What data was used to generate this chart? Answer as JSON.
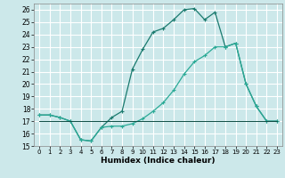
{
  "background_color": "#cce8ea",
  "grid_color": "#ffffff",
  "line1_x": [
    0,
    1,
    2,
    3,
    4,
    5,
    6,
    7,
    8,
    9,
    10,
    11,
    12,
    13,
    14,
    15,
    16,
    17,
    18,
    19,
    20,
    21,
    22,
    23
  ],
  "line1_y": [
    17.5,
    17.5,
    17.3,
    17.0,
    15.5,
    15.4,
    16.5,
    17.3,
    17.8,
    21.2,
    22.8,
    24.2,
    24.5,
    25.2,
    26.0,
    26.1,
    25.2,
    25.8,
    23.0,
    23.3,
    20.0,
    18.2,
    17.0,
    17.0
  ],
  "line2_x": [
    0,
    1,
    2,
    3,
    4,
    5,
    6,
    7,
    8,
    9,
    10,
    11,
    12,
    13,
    14,
    15,
    16,
    17,
    18,
    19,
    20,
    21,
    22,
    23
  ],
  "line2_y": [
    17.5,
    17.5,
    17.3,
    17.0,
    15.5,
    15.4,
    16.5,
    16.6,
    16.6,
    16.8,
    17.2,
    17.8,
    18.5,
    19.5,
    20.8,
    21.8,
    22.3,
    23.0,
    23.0,
    23.3,
    20.0,
    18.2,
    17.0,
    17.0
  ],
  "line3_x": [
    0,
    1,
    2,
    3,
    4,
    5,
    6,
    7,
    8,
    9,
    10,
    11,
    12,
    13,
    14,
    15,
    16,
    17,
    18,
    19,
    20,
    21,
    22,
    23
  ],
  "line3_y": [
    17.0,
    17.0,
    17.0,
    17.0,
    17.0,
    17.0,
    17.0,
    17.0,
    17.0,
    17.0,
    17.0,
    17.0,
    17.0,
    17.0,
    17.0,
    17.0,
    17.0,
    17.0,
    17.0,
    17.0,
    17.0,
    17.0,
    17.0,
    17.0
  ],
  "line1_color": "#1a7a6e",
  "line2_color": "#2aaa96",
  "line3_color": "#0d4d44",
  "marker": "+",
  "markersize": 3,
  "linewidth": 0.9,
  "xlabel": "Humidex (Indice chaleur)",
  "xlim": [
    -0.5,
    23.5
  ],
  "ylim": [
    15.0,
    26.5
  ],
  "yticks": [
    15,
    16,
    17,
    18,
    19,
    20,
    21,
    22,
    23,
    24,
    25,
    26
  ],
  "xticks": [
    0,
    1,
    2,
    3,
    4,
    5,
    6,
    7,
    8,
    9,
    10,
    11,
    12,
    13,
    14,
    15,
    16,
    17,
    18,
    19,
    20,
    21,
    22,
    23
  ],
  "tick_fontsize": 5.5,
  "xlabel_fontsize": 6.5
}
